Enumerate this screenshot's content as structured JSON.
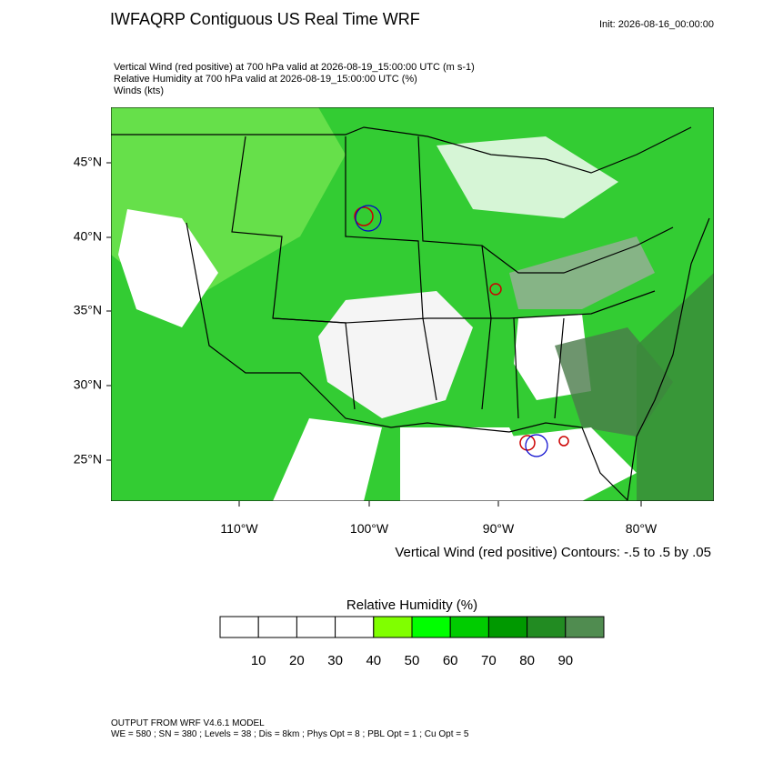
{
  "header": {
    "title": "IWFAQRP Contiguous US Real Time WRF",
    "init": "Init: 2026-08-16_00:00:00"
  },
  "subtitle": [
    "Vertical Wind (red positive) at 700 hPa valid at 2026-08-19_15:00:00 UTC   (m s-1)",
    "Relative Humidity at 700 hPa valid at 2026-08-19_15:00:00 UTC   (%)",
    "Winds   (kts)"
  ],
  "map": {
    "lat_labels": [
      "45°N",
      "40°N",
      "35°N",
      "30°N",
      "25°N"
    ],
    "lon_labels": [
      "110°W",
      "100°W",
      "90°W",
      "80°W"
    ],
    "contour_note": "Vertical Wind (red positive) Contours: -.5 to .5 by .05"
  },
  "colorbar": {
    "title": "Relative Humidity  (%)",
    "labels": [
      "10",
      "20",
      "30",
      "40",
      "50",
      "60",
      "70",
      "80",
      "90"
    ],
    "colors": [
      "#ffffff",
      "#ffffff",
      "#ffffff",
      "#ffffff",
      "#80ff00",
      "#00ff00",
      "#00cc00",
      "#009900",
      "#228b22",
      "#508c50"
    ]
  },
  "footer": [
    "OUTPUT FROM WRF V4.6.1 MODEL",
    "WE = 580 ; SN = 380 ; Levels = 38 ; Dis = 8km ; Phys Opt = 8 ; PBL Opt = 1 ; Cu Opt = 5"
  ]
}
